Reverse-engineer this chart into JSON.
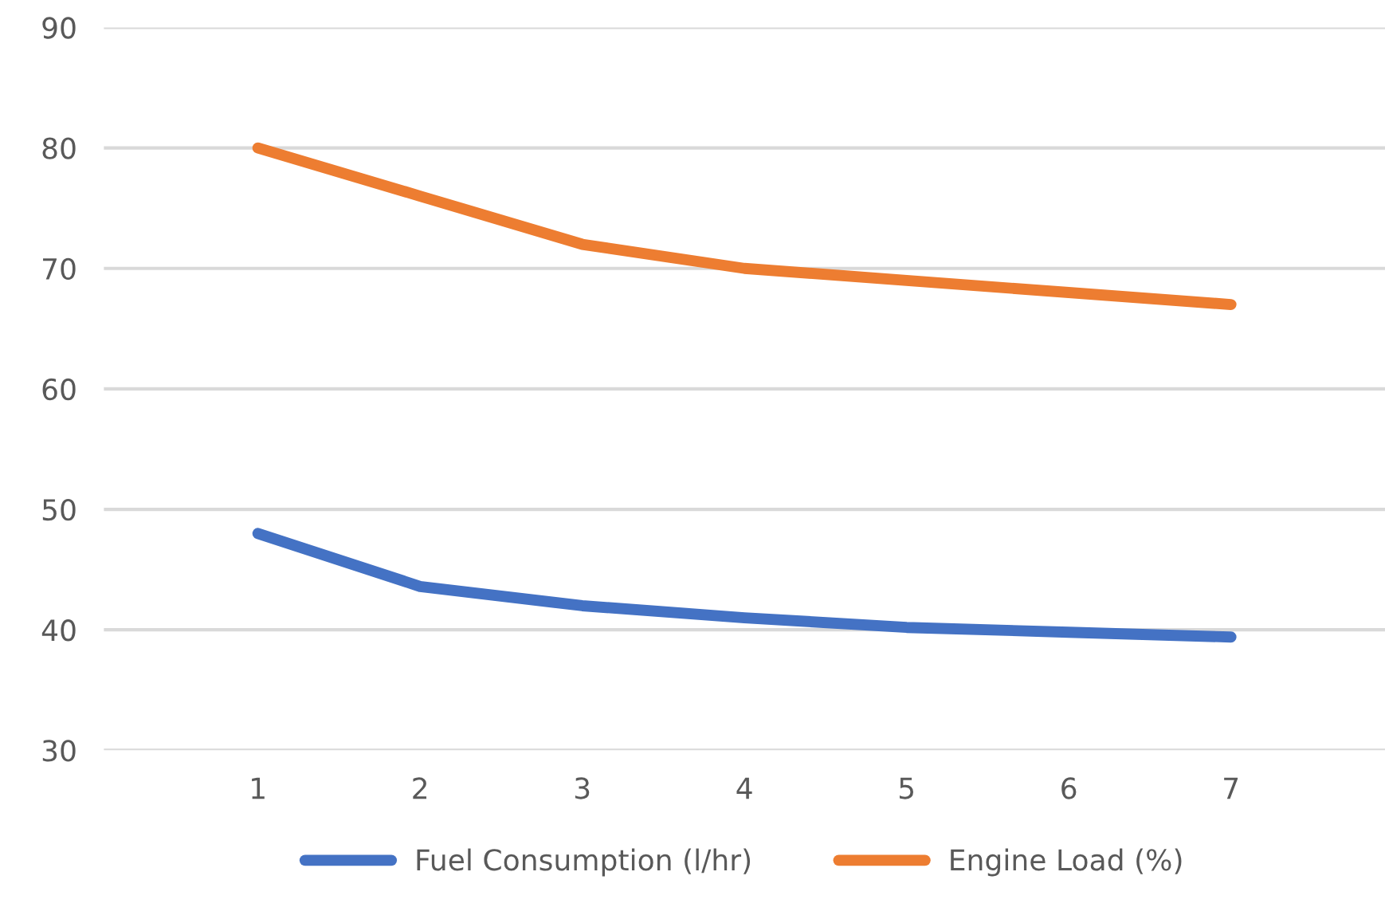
{
  "chart_data": {
    "type": "line",
    "categories": [
      "1",
      "2",
      "3",
      "4",
      "5",
      "6",
      "7"
    ],
    "series": [
      {
        "name": "Fuel Consumption (l/hr)",
        "color": "#4472c4",
        "values": [
          48,
          43.6,
          42,
          41,
          40.2,
          39.8,
          39.4
        ]
      },
      {
        "name": "Engine Load (%)",
        "color": "#ed7d31",
        "values": [
          80,
          76,
          72,
          70,
          69,
          68,
          67
        ]
      }
    ],
    "ylim": [
      30,
      90
    ],
    "yticks": [
      30,
      40,
      50,
      60,
      70,
      80,
      90
    ],
    "grid": "y",
    "legend": "bottom",
    "marker": "none",
    "line_style": "solid"
  }
}
